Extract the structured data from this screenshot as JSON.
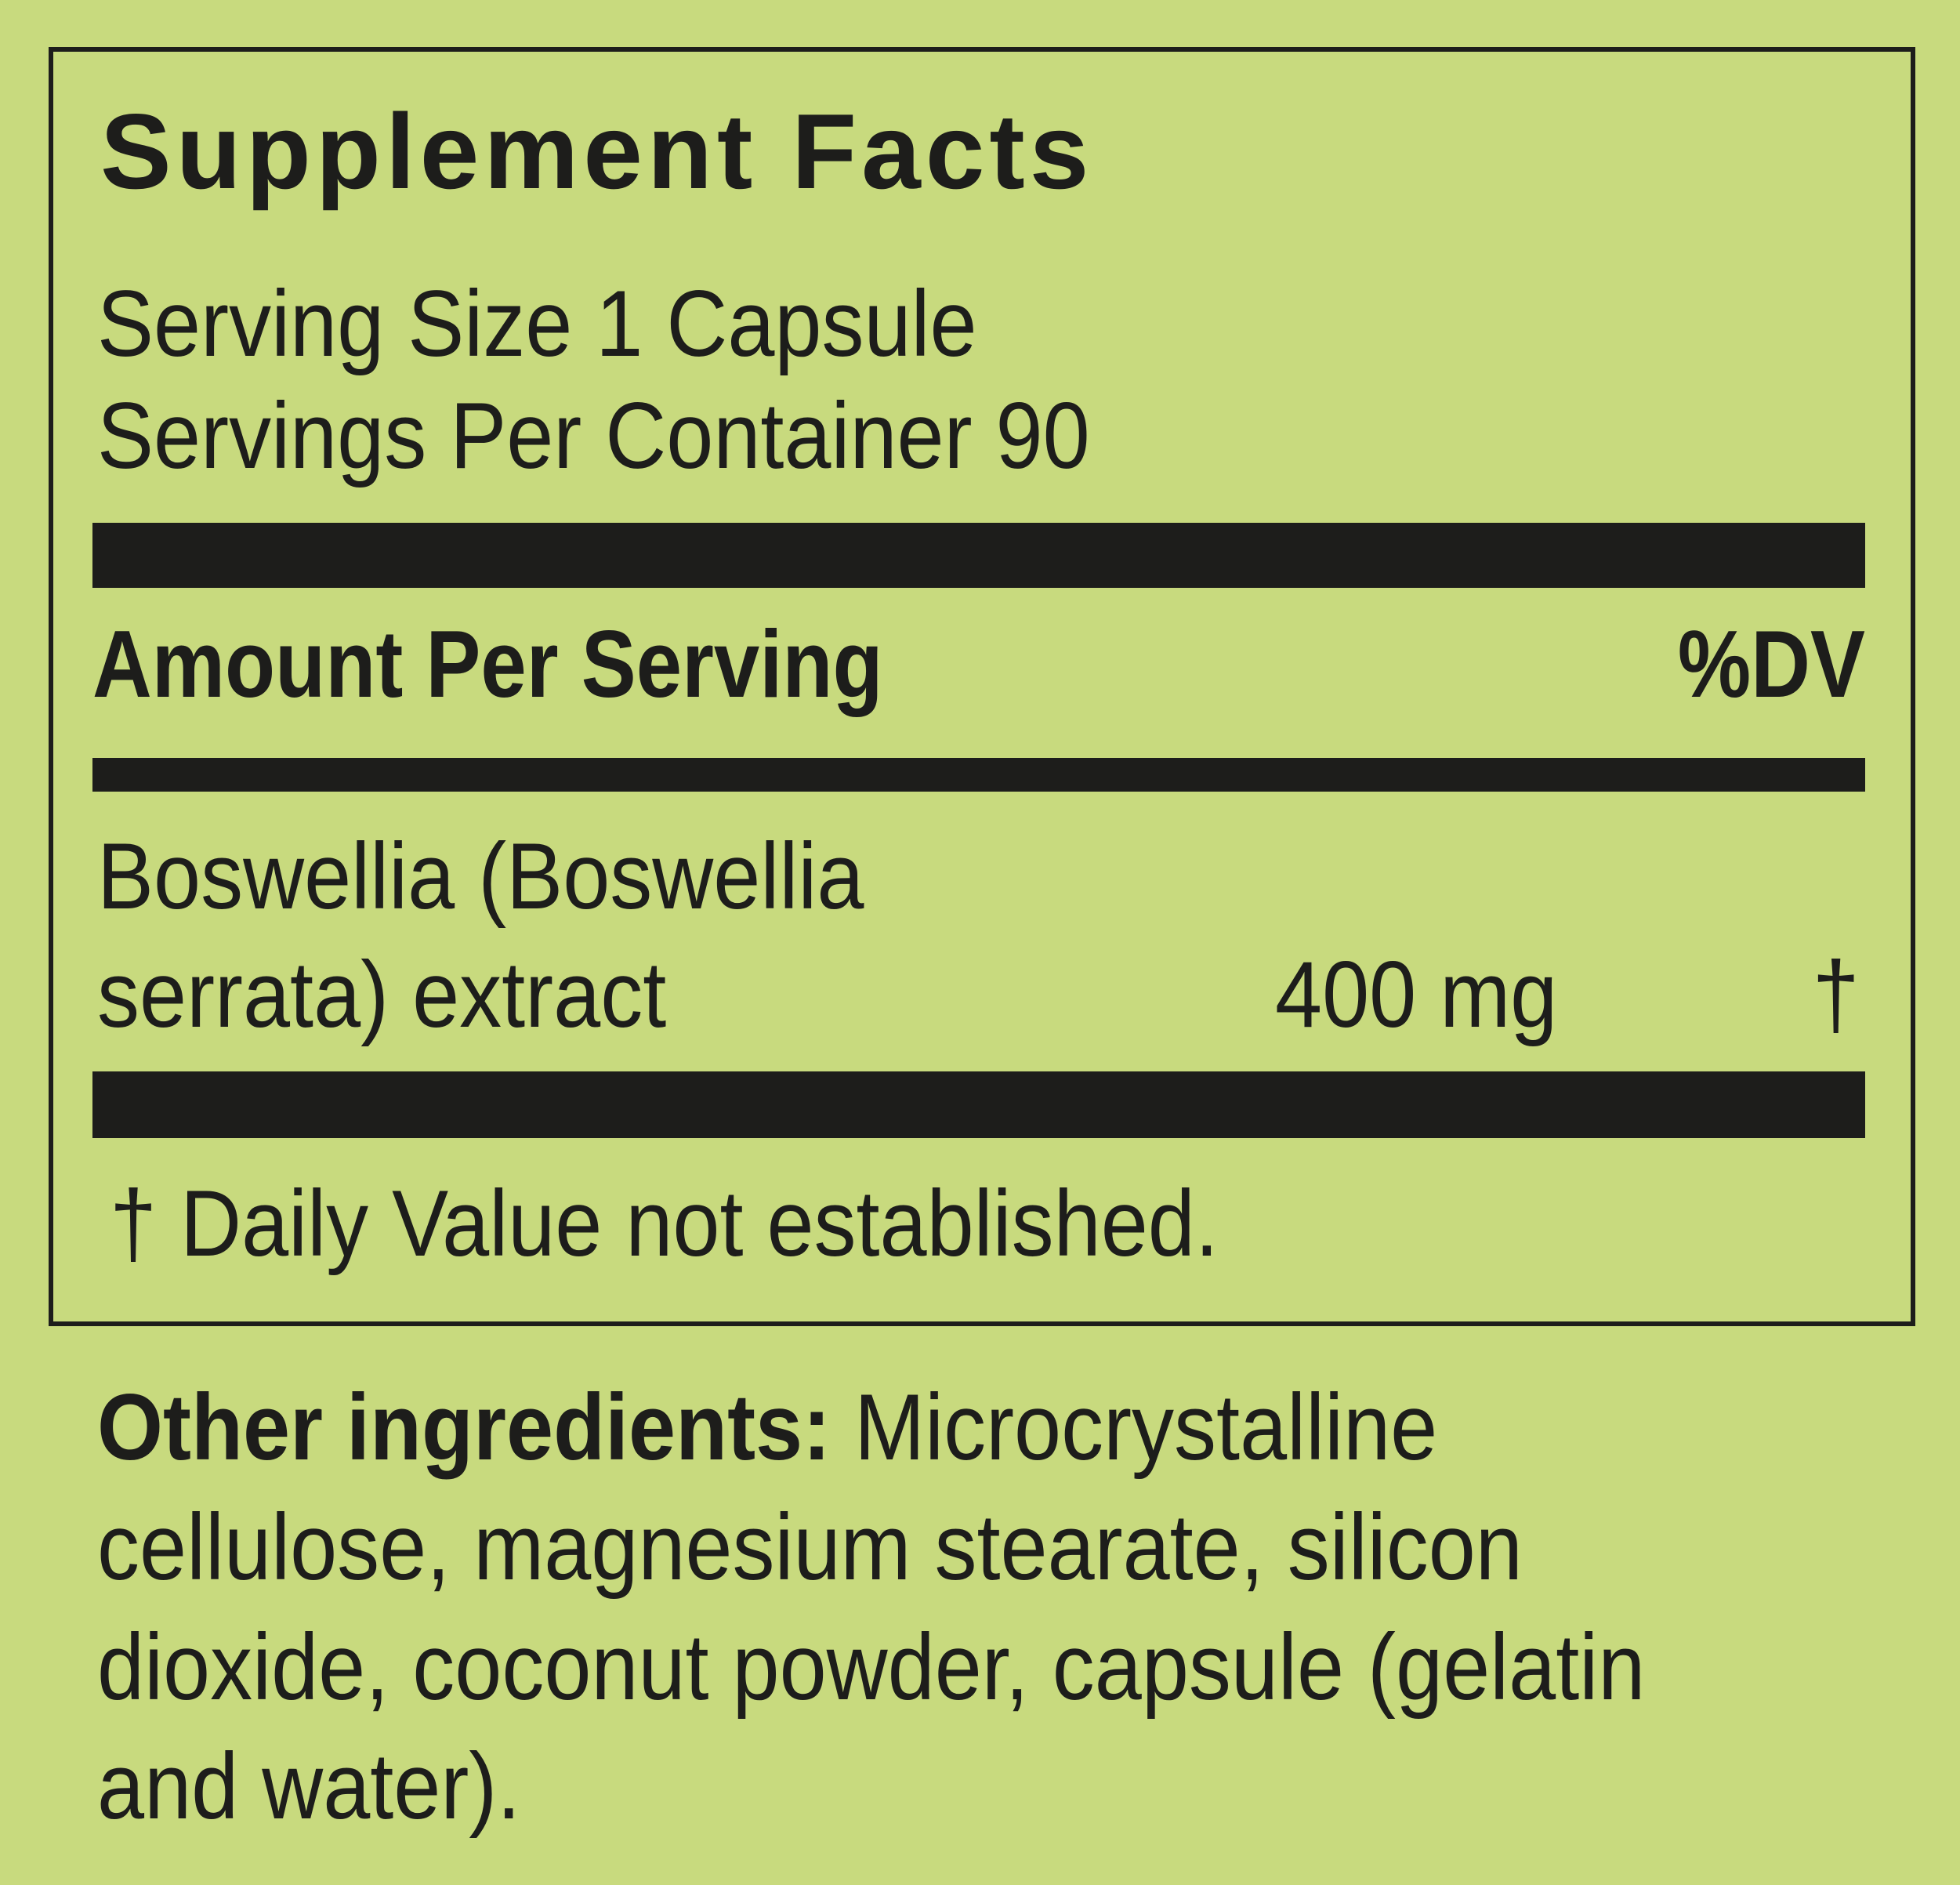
{
  "label": {
    "title": "Supplement Facts",
    "serving_size": "Serving Size 1 Capsule",
    "servings_per_container": "Servings Per Container 90",
    "header_amount": "Amount Per Serving",
    "header_dv": "%DV",
    "ingredients": [
      {
        "name_line1": "Boswellia (Boswellia",
        "name_line2": "serrata) extract",
        "amount": "400 mg",
        "dv": "†"
      }
    ],
    "footnote": "† Daily Value not established."
  },
  "other_ingredients": {
    "label": "Other ingredients:",
    "lines": [
      " Microcrystalline",
      "cellulose, magnesium stearate, silicon",
      "dioxide, coconut powder, capsule (gelatin",
      "and water)."
    ]
  },
  "colors": {
    "background": "#c8da7e",
    "ink": "#1d1d1b"
  }
}
